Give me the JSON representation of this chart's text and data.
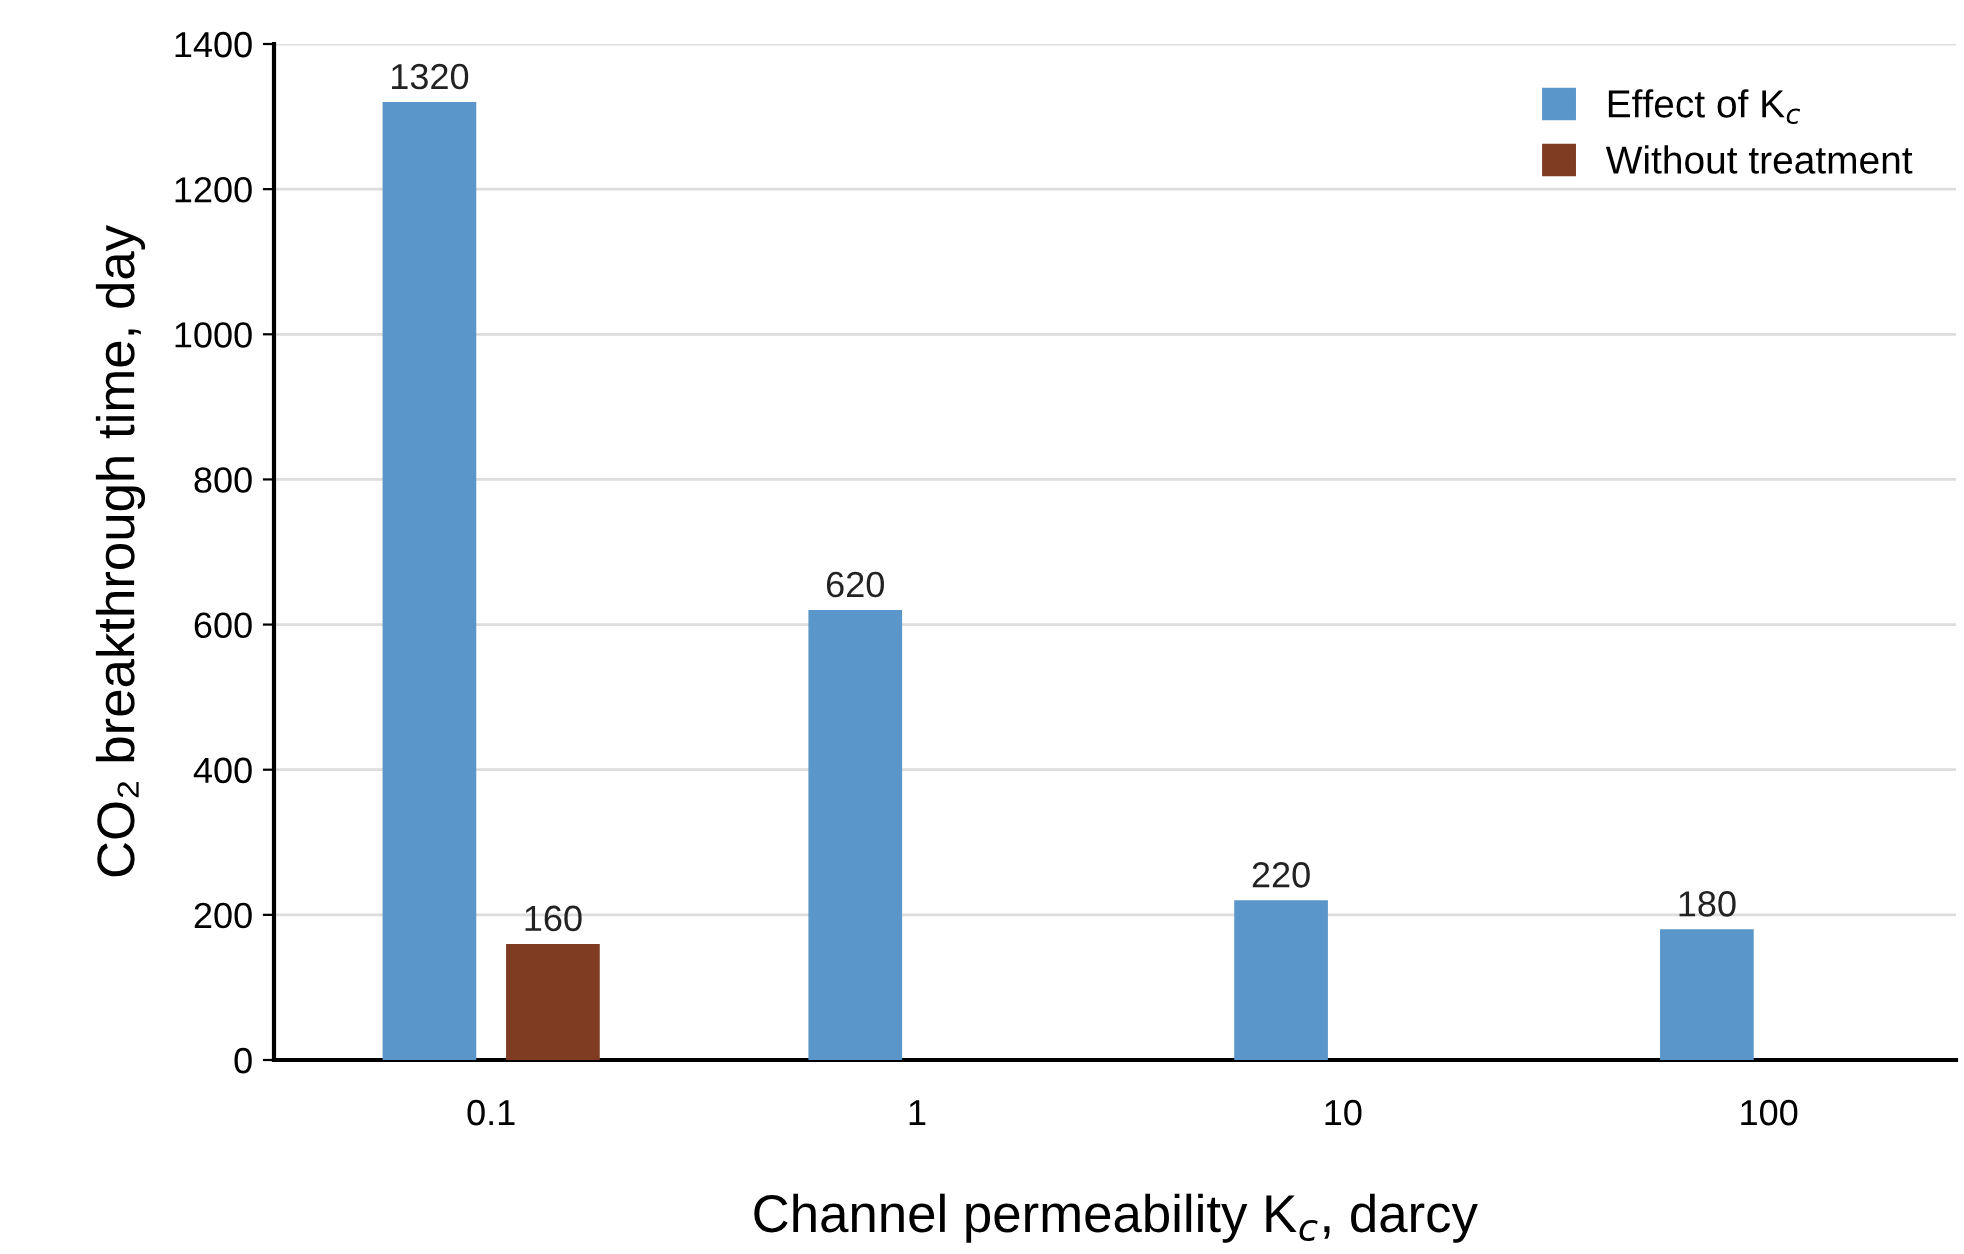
{
  "chart_data": {
    "type": "bar",
    "xlabel": "Channel permeability K$_{c}$, darcy",
    "ylabel": "CO₂ breakthrough time, day",
    "categories": [
      "0.1",
      "1",
      "10",
      "100"
    ],
    "series": [
      {
        "name": "Effect of K$_{c}$",
        "color": "#5b96cb",
        "values": [
          1320,
          620,
          220,
          180
        ]
      },
      {
        "name": "Without treatment",
        "color": "#7f3c22",
        "values": [
          160,
          null,
          null,
          null
        ]
      }
    ],
    "ylim": [
      0,
      1400
    ],
    "yticks": [
      0,
      200,
      400,
      600,
      800,
      1000,
      1200,
      1400
    ],
    "grid": "y",
    "legend": "top right",
    "data_labels": true
  }
}
